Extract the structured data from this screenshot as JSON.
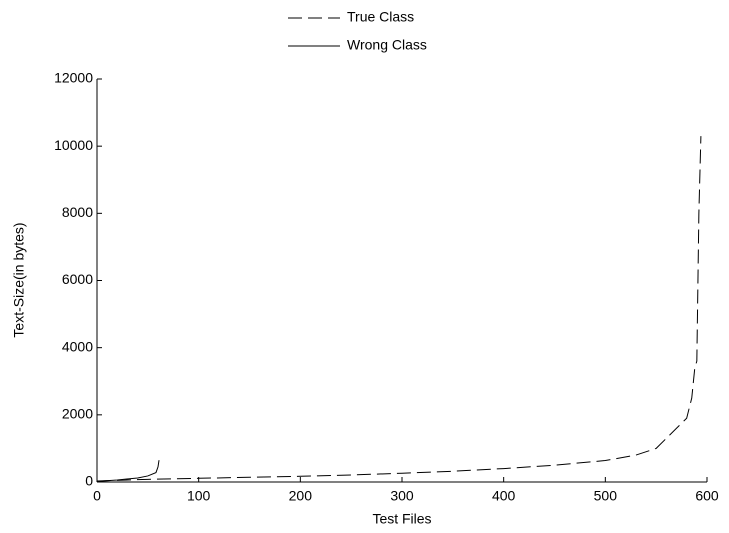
{
  "chart_data": {
    "type": "line",
    "xlabel": "Test Files",
    "ylabel": "Text-Size(in bytes)",
    "xlim": [
      0,
      600
    ],
    "xticks": [
      0,
      100,
      200,
      300,
      400,
      500,
      600
    ],
    "ylim": [
      0,
      12000
    ],
    "yticks": [
      0,
      2000,
      4000,
      6000,
      8000,
      10000,
      12000
    ],
    "grid": false,
    "legend": "top",
    "series": [
      {
        "name": "True Class",
        "color": "#000000",
        "line_style": "dashed",
        "x": [
          0,
          50,
          100,
          150,
          200,
          250,
          300,
          350,
          400,
          450,
          500,
          530,
          550,
          560,
          570,
          580,
          585,
          588,
          590,
          592,
          594
        ],
        "values": [
          30,
          80,
          110,
          140,
          170,
          210,
          260,
          320,
          400,
          500,
          640,
          800,
          1000,
          1300,
          1600,
          1900,
          2500,
          3400,
          3600,
          8000,
          10300
        ]
      },
      {
        "name": "Wrong Class",
        "color": "#000000",
        "line_style": "solid",
        "x": [
          0,
          20,
          40,
          50,
          58,
          60,
          61
        ],
        "values": [
          20,
          60,
          120,
          180,
          280,
          450,
          650
        ]
      }
    ]
  }
}
